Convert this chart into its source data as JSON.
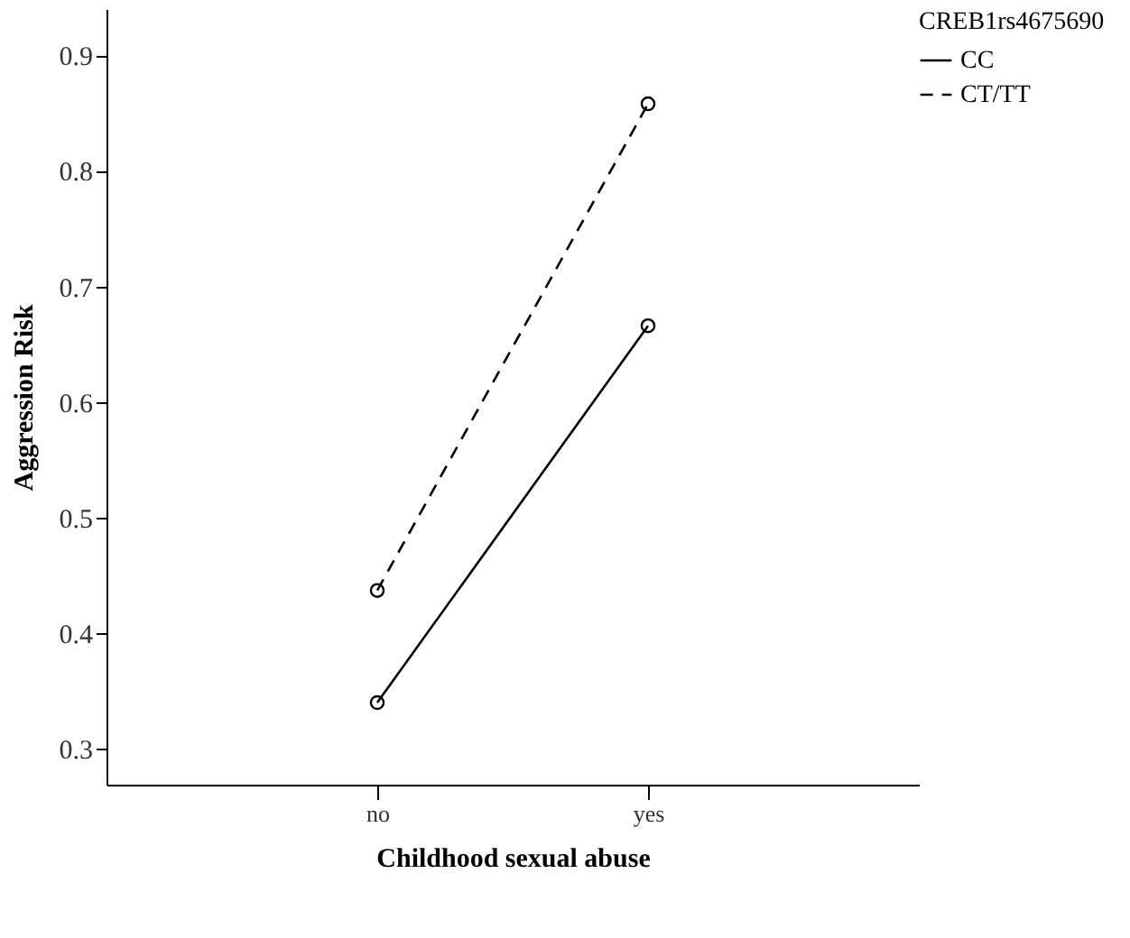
{
  "chart_data": {
    "type": "line",
    "xlabel": "Childhood sexual abuse",
    "ylabel": "Aggression Risk",
    "legend_title": "CREB1rs4675690",
    "categories": [
      "no",
      "yes"
    ],
    "series": [
      {
        "name": "CC",
        "color": "#000000",
        "values": [
          0.34,
          0.666
        ],
        "line_style": "solid"
      },
      {
        "name": "CT/TT",
        "color": "#000000",
        "values": [
          0.437,
          0.858
        ],
        "line_style": "dashed"
      }
    ],
    "ylim": [
      0.269,
      0.94
    ],
    "yticks": [
      0.3,
      0.4,
      0.5,
      0.6,
      0.7,
      0.8,
      0.9
    ],
    "marker": "circle",
    "legend": "top right",
    "grid": false
  }
}
